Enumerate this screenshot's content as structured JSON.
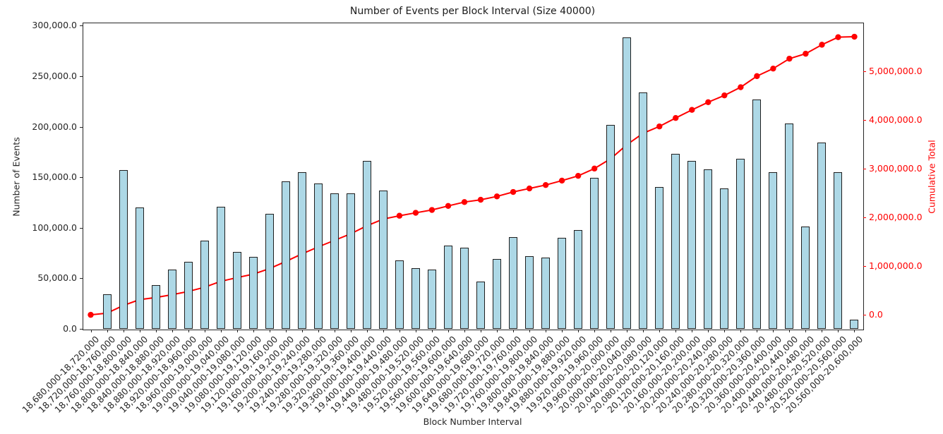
{
  "chart_data": {
    "type": "bar",
    "combo": "bar + cumulative line (twin y axes)",
    "title": "Number of Events per Block Interval (Size 40000)",
    "xlabel": "Block Number Interval",
    "categories": [
      "18,680,000-18,720,000",
      "18,720,000-18,760,000",
      "18,760,000-18,800,000",
      "18,800,000-18,840,000",
      "18,840,000-18,880,000",
      "18,880,000-18,920,000",
      "18,920,000-18,960,000",
      "18,960,000-19,000,000",
      "19,000,000-19,040,000",
      "19,040,000-19,080,000",
      "19,080,000-19,120,000",
      "19,120,000-19,160,000",
      "19,160,000-19,200,000",
      "19,200,000-19,240,000",
      "19,240,000-19,280,000",
      "19,280,000-19,320,000",
      "19,320,000-19,360,000",
      "19,360,000-19,400,000",
      "19,400,000-19,440,000",
      "19,440,000-19,480,000",
      "19,480,000-19,520,000",
      "19,520,000-19,560,000",
      "19,560,000-19,600,000",
      "19,600,000-19,640,000",
      "19,640,000-19,680,000",
      "19,680,000-19,720,000",
      "19,720,000-19,760,000",
      "19,760,000-19,800,000",
      "19,800,000-19,840,000",
      "19,840,000-19,880,000",
      "19,880,000-19,920,000",
      "19,920,000-19,960,000",
      "19,960,000-20,000,000",
      "20,000,000-20,040,000",
      "20,040,000-20,080,000",
      "20,080,000-20,120,000",
      "20,120,000-20,160,000",
      "20,160,000-20,200,000",
      "20,200,000-20,240,000",
      "20,240,000-20,280,000",
      "20,280,000-20,320,000",
      "20,320,000-20,360,000",
      "20,360,000-20,400,000",
      "20,400,000-20,440,000",
      "20,440,000-20,480,000",
      "20,480,000-20,520,000",
      "20,520,000-20,560,000",
      "20,560,000-20,600,000"
    ],
    "bar_series": {
      "name": "Number of Events",
      "fill_color": "#ADD8E6",
      "edge_color": "#1f1f1f",
      "values": [
        0,
        34000,
        157000,
        120000,
        43000,
        58500,
        66000,
        87000,
        121000,
        76000,
        71000,
        114000,
        146000,
        155000,
        144000,
        134000,
        134000,
        166000,
        137000,
        68000,
        60000,
        58500,
        82500,
        80000,
        46500,
        69000,
        91000,
        72000,
        70500,
        90000,
        98000,
        149500,
        202000,
        288000,
        234000,
        140000,
        173000,
        166000,
        158000,
        139000,
        168000,
        227000,
        155000,
        203000,
        101500,
        184500,
        155000,
        9000
      ]
    },
    "line_series": {
      "name": "Cumulative Total",
      "color": "#ff0000",
      "marker": "circle",
      "values": [
        0,
        34000,
        191000,
        311000,
        354000,
        412500,
        478500,
        565500,
        686500,
        762500,
        833500,
        947500,
        1093500,
        1248500,
        1392500,
        1526500,
        1660500,
        1826500,
        1963500,
        2031500,
        2091500,
        2150000,
        2232500,
        2312500,
        2359000,
        2428000,
        2519000,
        2591000,
        2661500,
        2751500,
        2849500,
        2999000,
        3201000,
        3489000,
        3723000,
        3863000,
        4036000,
        4202000,
        4360000,
        4499000,
        4667000,
        4894000,
        5049000,
        5252000,
        5353500,
        5538000,
        5693000,
        5702000
      ]
    },
    "left_axis": {
      "label": "Number of Events",
      "tick_values": [
        0,
        50000,
        100000,
        150000,
        200000,
        250000,
        300000
      ],
      "tick_labels": [
        "0.0",
        "50,000.0",
        "100,000.0",
        "150,000.0",
        "200,000.0",
        "250,000.0",
        "300,000.0"
      ],
      "range": [
        0,
        303000
      ],
      "color": "#262626"
    },
    "right_axis": {
      "label": "Cumulative Total",
      "tick_values": [
        0,
        1000000,
        2000000,
        3000000,
        4000000,
        5000000
      ],
      "tick_labels": [
        "0.0",
        "1,000,000.0",
        "2,000,000.0",
        "3,000,000.0",
        "4,000,000.0",
        "5,000,000.0"
      ],
      "range": [
        -287600,
        5992000
      ],
      "color": "#ff0000"
    },
    "grid": false,
    "legend": "none",
    "background": "#ffffff"
  }
}
